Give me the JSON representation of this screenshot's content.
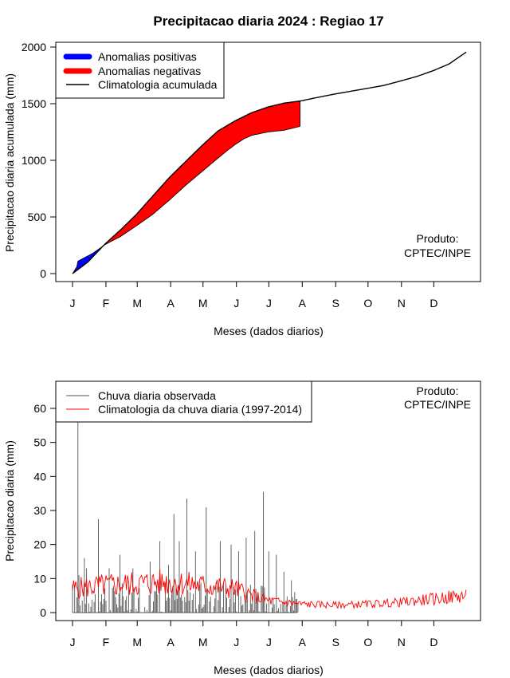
{
  "chart_data": [
    {
      "type": "area",
      "title": "Precipitacao diaria 2024 : Regiao 17",
      "xlabel": "Meses (dados diarios)",
      "ylabel": "Precipitacao diaria acumulada (mm)",
      "ylim": [
        0,
        2000
      ],
      "yticks": [
        0,
        500,
        1000,
        1500,
        2000
      ],
      "month_ticks": [
        "J",
        "F",
        "M",
        "A",
        "M",
        "J",
        "J",
        "A",
        "S",
        "O",
        "N",
        "D"
      ],
      "month_start_days": [
        1,
        32,
        61,
        92,
        122,
        153,
        183,
        214,
        245,
        275,
        306,
        336
      ],
      "legend": [
        "Anomalias positivas",
        "Anomalias negativas",
        "Climatologia acumulada"
      ],
      "legend_colors": [
        "#0000ff",
        "#ff0000",
        "#000000"
      ],
      "legend_position": "top-left",
      "annotation": [
        "Produto:",
        "CPTEC/INPE"
      ],
      "climatology_cumulative": {
        "day": [
          1,
          15,
          31,
          46,
          60,
          75,
          91,
          106,
          121,
          136,
          152,
          167,
          182,
          197,
          213,
          228,
          244,
          259,
          274,
          289,
          305,
          320,
          335,
          350,
          366
        ],
        "mm": [
          0,
          100,
          260,
          390,
          520,
          680,
          850,
          990,
          1130,
          1260,
          1350,
          1420,
          1470,
          1505,
          1525,
          1555,
          1585,
          1610,
          1635,
          1660,
          1700,
          1740,
          1790,
          1850,
          1955
        ]
      },
      "observed_cumulative": {
        "day": [
          1,
          5,
          6,
          10,
          20,
          31,
          40,
          46,
          60,
          75,
          91,
          106,
          121,
          136,
          145,
          152,
          160,
          167,
          182,
          197,
          212
        ],
        "mm": [
          0,
          60,
          110,
          130,
          180,
          255,
          300,
          330,
          420,
          520,
          650,
          780,
          900,
          1020,
          1090,
          1140,
          1190,
          1220,
          1250,
          1265,
          1300
        ]
      }
    },
    {
      "type": "bar",
      "title": "",
      "xlabel": "Meses (dados diarios)",
      "ylabel": "Precipitacao diaria (mm)",
      "ylim": [
        0,
        65
      ],
      "yticks": [
        0,
        10,
        20,
        30,
        40,
        50,
        60
      ],
      "month_ticks": [
        "J",
        "F",
        "M",
        "A",
        "M",
        "J",
        "J",
        "A",
        "S",
        "O",
        "N",
        "D"
      ],
      "legend": [
        "Chuva diaria observada",
        "Climatologia da chuva diaria (1997-2014)"
      ],
      "legend_colors": [
        "#555555",
        "#ff0000"
      ],
      "legend_position": "top-left",
      "annotation": [
        "Produto:",
        "CPTEC/INPE"
      ],
      "observed_peaks": {
        "day": [
          6,
          7,
          12,
          14,
          25,
          35,
          45,
          57,
          73,
          82,
          90,
          95,
          100,
          107,
          115,
          125,
          138,
          148,
          155,
          162,
          170,
          178,
          183,
          190,
          197,
          204,
          207
        ],
        "mm": [
          57,
          11,
          16,
          13,
          27.5,
          13,
          17,
          13,
          15,
          21,
          14,
          29,
          21,
          33.5,
          18,
          31,
          21,
          20,
          18,
          22,
          24,
          35.5,
          18,
          17,
          12,
          9.5,
          6
        ]
      },
      "observed_last_day": 210,
      "climatology_mean_mm": {
        "day": [
          1,
          31,
          60,
          91,
          121,
          152,
          167,
          182,
          197,
          213,
          244,
          274,
          305,
          335,
          366
        ],
        "mm": [
          7,
          8,
          8.5,
          9,
          8,
          7,
          5,
          3.5,
          3,
          2.5,
          2.2,
          2.5,
          3,
          4,
          5
        ]
      }
    }
  ]
}
